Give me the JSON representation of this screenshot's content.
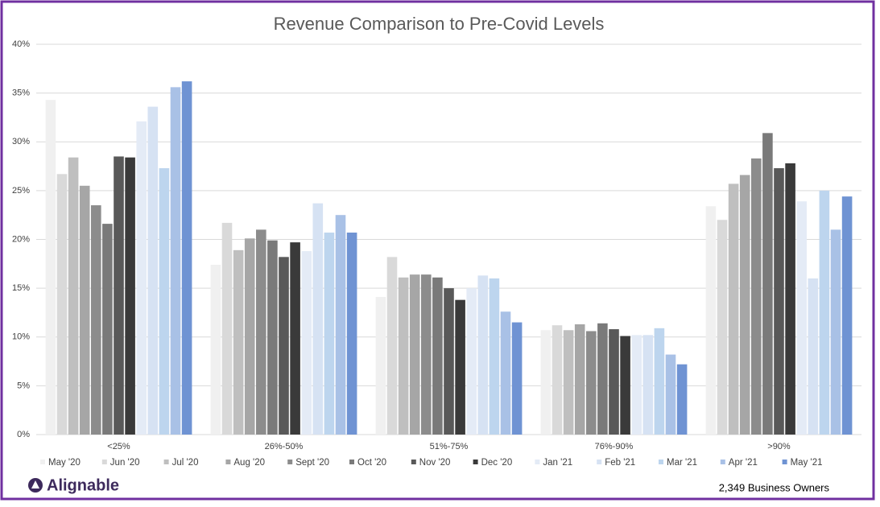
{
  "chart_data": {
    "type": "bar",
    "title": "Revenue Comparison to Pre-Covid Levels",
    "categories": [
      "<25%",
      "26%-50%",
      "51%-75%",
      "76%-90%",
      ">90%"
    ],
    "series": [
      {
        "name": "May '20",
        "color": "#f0f0f0",
        "values": [
          34.3,
          17.4,
          14.1,
          10.7,
          23.4
        ]
      },
      {
        "name": "Jun '20",
        "color": "#d9d9d9",
        "values": [
          26.7,
          21.7,
          18.2,
          11.2,
          22.0
        ]
      },
      {
        "name": "Jul '20",
        "color": "#bfbfbf",
        "values": [
          28.4,
          18.9,
          16.1,
          10.7,
          25.7
        ]
      },
      {
        "name": "Aug '20",
        "color": "#a6a6a6",
        "values": [
          25.5,
          20.1,
          16.4,
          11.3,
          26.6
        ]
      },
      {
        "name": "Sept '20",
        "color": "#8c8c8c",
        "values": [
          23.5,
          21.0,
          16.4,
          10.6,
          28.3
        ]
      },
      {
        "name": "Oct '20",
        "color": "#7a7a7a",
        "values": [
          21.6,
          19.9,
          16.1,
          11.4,
          30.9
        ]
      },
      {
        "name": "Nov '20",
        "color": "#595959",
        "values": [
          28.5,
          18.2,
          15.0,
          10.8,
          27.3
        ]
      },
      {
        "name": "Dec '20",
        "color": "#3a3a3a",
        "values": [
          28.4,
          19.7,
          13.8,
          10.1,
          27.8
        ]
      },
      {
        "name": "Jan '21",
        "color": "#e4ebf6",
        "values": [
          32.1,
          18.8,
          15.0,
          10.2,
          23.9
        ]
      },
      {
        "name": "Feb '21",
        "color": "#d6e2f3",
        "values": [
          33.6,
          23.7,
          16.3,
          10.2,
          16.0
        ]
      },
      {
        "name": "Mar '21",
        "color": "#bdd5ee",
        "values": [
          27.3,
          20.7,
          16.0,
          10.9,
          25.0
        ]
      },
      {
        "name": "Apr '21",
        "color": "#a9c1e6",
        "values": [
          35.6,
          22.5,
          12.6,
          8.2,
          21.0
        ]
      },
      {
        "name": "May '21",
        "color": "#6f93d3",
        "values": [
          36.2,
          20.7,
          11.5,
          7.2,
          24.4
        ]
      }
    ],
    "ylim": [
      0,
      40
    ],
    "yticks": [
      {
        "value": 0,
        "label": "0%"
      },
      {
        "value": 5,
        "label": "5%"
      },
      {
        "value": 10,
        "label": "10%"
      },
      {
        "value": 15,
        "label": "15%"
      },
      {
        "value": 20,
        "label": "20%"
      },
      {
        "value": 25,
        "label": "25%"
      },
      {
        "value": 30,
        "label": "30%"
      },
      {
        "value": 35,
        "label": "35%"
      },
      {
        "value": 40,
        "label": "40%"
      }
    ],
    "grid": true,
    "legend": "bottom"
  },
  "logo": "Alignable",
  "footnote": "2,349 Business Owners"
}
